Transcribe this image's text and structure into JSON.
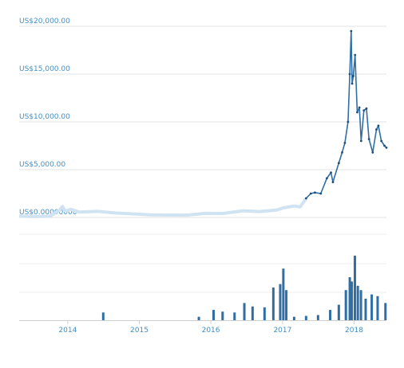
{
  "chart_data": [
    {
      "type": "line",
      "x_type": "date",
      "title": "",
      "xlabel": "",
      "ylabel": "",
      "ylim": [
        0,
        20000
      ],
      "ytick_values": [
        0,
        5000,
        10000,
        15000,
        20000
      ],
      "ytick_labels": [
        "US$0.00000000",
        "US$5,000.00",
        "US$10,000.00",
        "US$15,000.00",
        "US$20,000.00"
      ],
      "xlim": [
        "2013-04-28",
        "2018-06-15"
      ],
      "xtick_values": [
        "2014-01-01",
        "2015-01-01",
        "2016-01-01",
        "2017-01-01",
        "2018-01-01"
      ],
      "xtick_labels": [
        "2014",
        "2015",
        "2016",
        "2017",
        "2018"
      ],
      "grid": true,
      "legend": "none",
      "colors": {
        "line": "#2f6fa6",
        "marker": "#1f4f7a",
        "early_line": "#cfe3f3"
      },
      "series": [
        {
          "x": [
            "2013-04-28",
            "2013-07-01",
            "2013-10-01",
            "2013-11-20",
            "2013-12-05",
            "2013-12-20",
            "2014-01-15",
            "2014-03-01",
            "2014-06-01",
            "2014-09-01",
            "2014-12-01",
            "2015-03-01",
            "2015-06-01",
            "2015-09-01",
            "2015-12-01",
            "2016-03-01",
            "2016-06-15",
            "2016-09-01",
            "2016-12-01",
            "2017-01-05",
            "2017-03-01",
            "2017-04-01",
            "2017-05-01",
            "2017-05-25",
            "2017-06-15",
            "2017-07-15",
            "2017-08-15",
            "2017-09-05",
            "2017-09-15",
            "2017-10-15",
            "2017-11-01",
            "2017-11-15",
            "2017-12-01",
            "2017-12-10",
            "2017-12-17",
            "2017-12-22",
            "2017-12-28",
            "2018-01-06",
            "2018-01-17",
            "2018-01-28",
            "2018-02-06",
            "2018-02-20",
            "2018-03-05",
            "2018-03-18",
            "2018-04-06",
            "2018-04-25",
            "2018-05-05",
            "2018-05-20",
            "2018-06-05",
            "2018-06-15"
          ],
          "values": [
            135,
            90,
            125,
            750,
            1150,
            650,
            850,
            560,
            640,
            470,
            370,
            270,
            250,
            240,
            430,
            420,
            700,
            610,
            770,
            1000,
            1200,
            1100,
            2000,
            2500,
            2600,
            2500,
            4100,
            4700,
            3700,
            5700,
            6800,
            7800,
            10000,
            15000,
            19500,
            14000,
            14800,
            17000,
            11000,
            11500,
            8000,
            11200,
            11400,
            8200,
            6800,
            9200,
            9600,
            8000,
            7500,
            7300
          ]
        }
      ]
    },
    {
      "type": "bar",
      "x_type": "date",
      "title": "",
      "ylabel": "",
      "note": "volume panel without printed y-axis labels",
      "series": [
        {
          "x": [
            "2014-07-01",
            "2015-11-01",
            "2016-01-15",
            "2016-03-01",
            "2016-05-01",
            "2016-06-20",
            "2016-08-01",
            "2016-10-01",
            "2016-11-15",
            "2016-12-20",
            "2017-01-05",
            "2017-01-20",
            "2017-03-01",
            "2017-05-01",
            "2017-07-01",
            "2017-09-01",
            "2017-10-15",
            "2017-11-20",
            "2017-12-10",
            "2017-12-20",
            "2018-01-05",
            "2018-01-20",
            "2018-02-05",
            "2018-03-01",
            "2018-04-01",
            "2018-05-01",
            "2018-06-10"
          ],
          "values": [
            0.09,
            0.04,
            0.12,
            0.1,
            0.09,
            0.2,
            0.16,
            0.15,
            0.38,
            0.42,
            0.6,
            0.35,
            0.04,
            0.05,
            0.06,
            0.12,
            0.18,
            0.35,
            0.5,
            0.45,
            0.75,
            0.4,
            0.35,
            0.25,
            0.3,
            0.28,
            0.2
          ]
        }
      ]
    }
  ]
}
